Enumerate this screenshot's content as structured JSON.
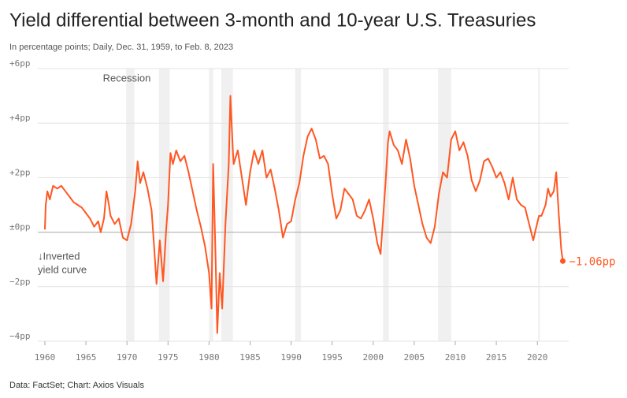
{
  "chart_data": {
    "type": "line",
    "title": "Yield differential between 3-month and 10-year U.S. Treasuries",
    "subtitle": "In percentage points; Daily, Dec. 31, 1959, to Feb. 8, 2023",
    "source": "Data: FactSet; Chart: Axios Visuals",
    "color": "#ff5722",
    "grid": true,
    "xlim": [
      1960,
      2026
    ],
    "ylim": [
      -4,
      6
    ],
    "xticks": [
      1960,
      1965,
      1970,
      1975,
      1980,
      1985,
      1990,
      1995,
      2000,
      2005,
      2010,
      2015,
      2020
    ],
    "yticks": [
      {
        "value": 6,
        "label": "+6pp"
      },
      {
        "value": 4,
        "label": "+4pp"
      },
      {
        "value": 2,
        "label": "+2pp"
      },
      {
        "value": 0,
        "label": "±0pp"
      },
      {
        "value": -2,
        "label": "−2pp"
      },
      {
        "value": -4,
        "label": "−4pp"
      }
    ],
    "recession_label": "Recession",
    "recessions": [
      [
        1969.9,
        1970.9
      ],
      [
        1973.9,
        1975.2
      ],
      [
        1980.0,
        1980.5
      ],
      [
        1981.5,
        1982.9
      ],
      [
        1990.5,
        1991.2
      ],
      [
        2001.2,
        2001.9
      ],
      [
        2007.9,
        2009.5
      ],
      [
        2020.1,
        2020.3
      ]
    ],
    "inverted_label": [
      "↓Inverted",
      "yield curve"
    ],
    "end_point": {
      "x": 2023.1,
      "value": -1.06,
      "label": "−1.06pp"
    },
    "x": [
      1960.0,
      1960.1,
      1960.3,
      1960.6,
      1961,
      1961.5,
      1962,
      1962.5,
      1963,
      1963.5,
      1964,
      1964.5,
      1965,
      1965.5,
      1966,
      1966.5,
      1966.8,
      1967.2,
      1967.5,
      1967.8,
      1968,
      1968.5,
      1969,
      1969.5,
      1970,
      1970.5,
      1971,
      1971.3,
      1971.6,
      1972,
      1972.5,
      1973,
      1973.3,
      1973.6,
      1974,
      1974.4,
      1974.8,
      1975,
      1975.3,
      1975.6,
      1976,
      1976.5,
      1977,
      1977.5,
      1978,
      1978.5,
      1979,
      1979.5,
      1980,
      1980.3,
      1980.5,
      1980.8,
      1981,
      1981.3,
      1981.6,
      1982,
      1982.4,
      1982.6,
      1982.9,
      1983,
      1983.5,
      1984,
      1984.5,
      1985,
      1985.5,
      1986,
      1986.5,
      1987,
      1987.5,
      1988,
      1988.5,
      1989,
      1989.5,
      1990,
      1990.5,
      1991,
      1991.5,
      1992,
      1992.5,
      1993,
      1993.5,
      1994,
      1994.5,
      1995,
      1995.5,
      1996,
      1996.5,
      1997,
      1997.5,
      1998,
      1998.5,
      1999,
      1999.5,
      2000,
      2000.5,
      2000.9,
      2001.2,
      2001.5,
      2001.8,
      2002,
      2002.5,
      2003,
      2003.5,
      2004,
      2004.5,
      2005,
      2005.5,
      2006,
      2006.5,
      2007,
      2007.5,
      2008,
      2008.5,
      2009,
      2009.5,
      2010,
      2010.5,
      2011,
      2011.5,
      2012,
      2012.5,
      2013,
      2013.5,
      2014,
      2014.5,
      2015,
      2015.5,
      2016,
      2016.5,
      2017,
      2017.5,
      2018,
      2018.5,
      2019,
      2019.5,
      2019.8,
      2020.2,
      2020.5,
      2021,
      2021.3,
      2021.6,
      2022,
      2022.3,
      2022.6,
      2022.9,
      2023.1
    ],
    "values": [
      0.1,
      1.0,
      1.5,
      1.2,
      1.7,
      1.6,
      1.7,
      1.5,
      1.3,
      1.1,
      1.0,
      0.9,
      0.7,
      0.5,
      0.2,
      0.4,
      0.0,
      0.5,
      1.5,
      1.0,
      0.6,
      0.3,
      0.5,
      -0.2,
      -0.3,
      0.3,
      1.5,
      2.6,
      1.8,
      2.2,
      1.6,
      0.8,
      -0.5,
      -1.9,
      -0.3,
      -1.8,
      0.2,
      1.0,
      2.9,
      2.5,
      3.0,
      2.6,
      2.8,
      2.2,
      1.5,
      0.8,
      0.2,
      -0.5,
      -1.5,
      -2.8,
      2.5,
      -1.0,
      -3.7,
      -1.5,
      -2.8,
      0.3,
      2.5,
      5.0,
      3.0,
      2.5,
      3.0,
      2.0,
      1.0,
      2.2,
      3.0,
      2.5,
      3.0,
      2.0,
      2.3,
      1.6,
      0.8,
      -0.2,
      0.3,
      0.4,
      1.2,
      1.8,
      2.8,
      3.5,
      3.8,
      3.4,
      2.7,
      2.8,
      2.5,
      1.4,
      0.5,
      0.8,
      1.6,
      1.4,
      1.2,
      0.6,
      0.5,
      0.8,
      1.2,
      0.5,
      -0.4,
      -0.8,
      0.5,
      1.8,
      3.3,
      3.7,
      3.2,
      3.0,
      2.5,
      3.4,
      2.7,
      1.7,
      1.0,
      0.3,
      -0.2,
      -0.4,
      0.2,
      1.4,
      2.2,
      2.0,
      3.4,
      3.7,
      3.0,
      3.3,
      2.8,
      1.9,
      1.5,
      1.9,
      2.6,
      2.7,
      2.4,
      2.0,
      2.2,
      1.8,
      1.2,
      2.0,
      1.2,
      1.0,
      0.9,
      0.3,
      -0.3,
      0.1,
      0.6,
      0.6,
      1.0,
      1.6,
      1.3,
      1.5,
      2.2,
      0.7,
      -0.6,
      -1.06
    ]
  }
}
